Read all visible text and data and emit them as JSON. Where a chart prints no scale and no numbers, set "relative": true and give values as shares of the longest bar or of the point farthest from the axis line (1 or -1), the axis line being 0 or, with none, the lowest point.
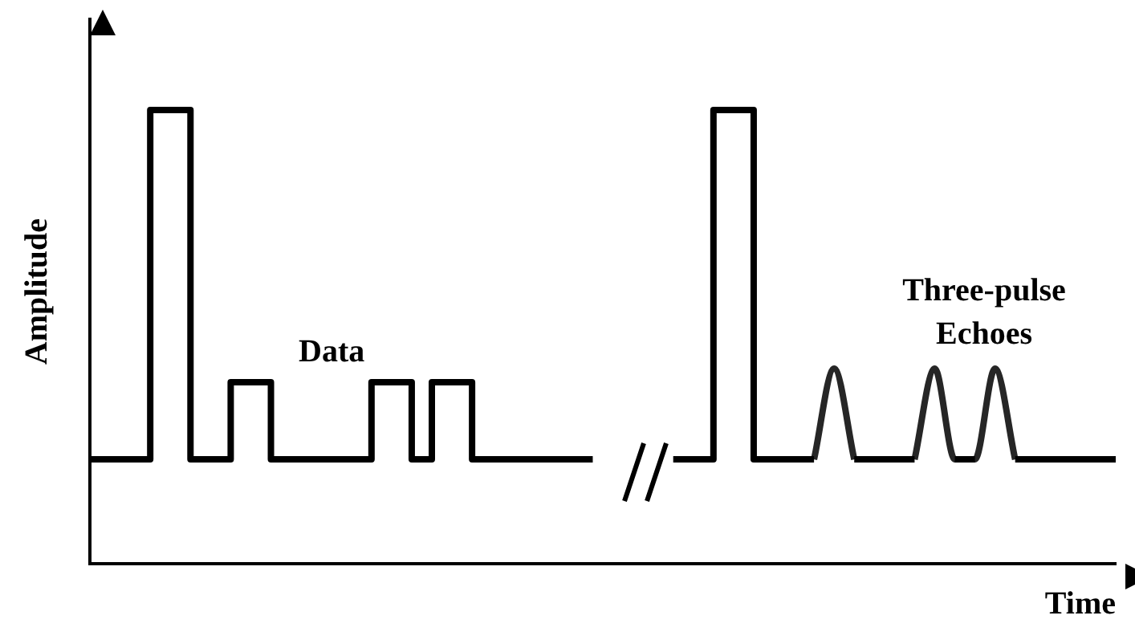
{
  "chart_data": {
    "type": "step",
    "relative": true,
    "xlabel": "Time",
    "ylabel": "Amplitude",
    "categories": [
      null,
      null,
      null,
      null,
      null,
      null,
      null,
      null,
      null,
      null,
      null,
      null,
      null,
      null,
      null,
      null,
      null,
      null,
      null,
      null,
      null,
      null,
      null,
      null,
      null,
      null,
      null,
      null,
      null,
      null,
      null,
      null,
      null,
      null,
      null,
      null,
      null,
      null,
      null,
      null,
      null,
      null,
      null,
      null,
      null,
      null,
      null,
      null,
      null,
      null,
      null,
      null
    ],
    "series": [
      {
        "color": "#000000",
        "values": [
          0.23,
          0.23,
          0.23,
          0.23,
          1,
          1,
          0.23,
          0.23,
          0.4,
          0.4,
          0.23,
          0.23,
          0.23,
          0.23,
          0.23,
          0.4,
          0.4,
          0.23,
          0.4,
          0.4,
          0.23,
          0.23,
          0.23,
          0.23,
          0.23,
          0.23,
          null,
          null,
          null,
          0.23,
          0.23,
          0.23,
          1,
          1,
          0.23,
          0.23,
          0.23,
          null,
          0.23,
          0.23,
          0.23,
          0.23,
          null,
          0.23,
          0.23,
          null,
          0.23,
          0.23,
          0.23,
          0.23,
          0.23,
          0.23
        ]
      },
      {
        "type": "line",
        "color": "#262626",
        "values": [
          null,
          null,
          null,
          null,
          null,
          null,
          null,
          null,
          null,
          null,
          null,
          null,
          null,
          null,
          null,
          null,
          null,
          null,
          null,
          null,
          null,
          null,
          null,
          null,
          null,
          null,
          null,
          null,
          null,
          null,
          null,
          null,
          null,
          null,
          null,
          null,
          0.23,
          0.43,
          0.23,
          null,
          null,
          0.23,
          0.43,
          0.23,
          0.23,
          0.43,
          0.23,
          null,
          null,
          null,
          null,
          null
        ]
      }
    ],
    "annotations": [
      "Data",
      "Three-pulse Echoes"
    ],
    "grid": false,
    "legend": false
  }
}
